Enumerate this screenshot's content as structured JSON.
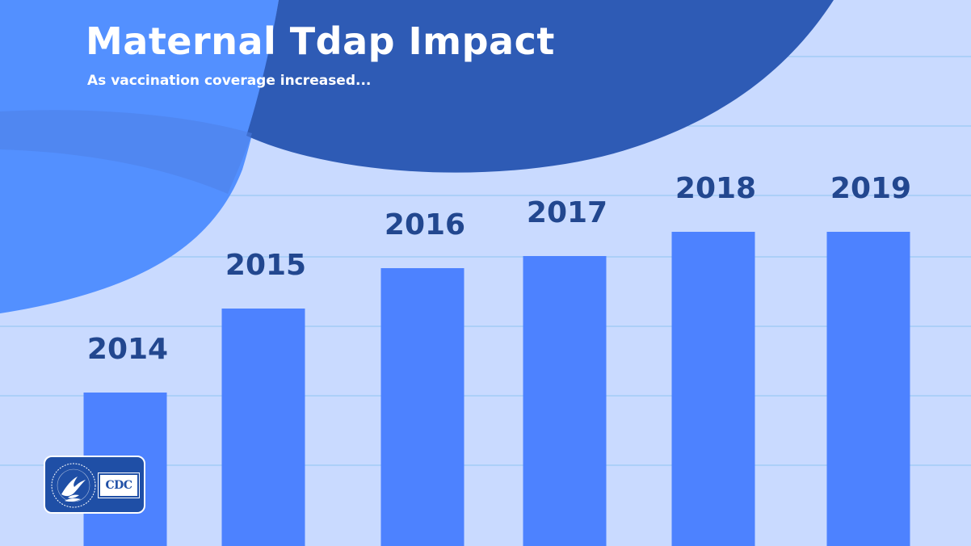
{
  "header": {
    "title": "Maternal Tdap Impact",
    "subtitle": "As vaccination coverage increased..."
  },
  "logo": {
    "agency_text": "CDC",
    "seal_icon": "hhs-eagle-seal-icon"
  },
  "colors": {
    "background": "#c9daff",
    "bar": "#4d82ff",
    "label": "#22478f",
    "dark_blob": "#2e5bb5",
    "light_blob": "#5390ff",
    "gridline": "#8fc4f0"
  },
  "chart_data": {
    "type": "bar",
    "title": "Maternal Tdap Impact",
    "subtitle": "As vaccination coverage increased...",
    "categories": [
      "2014",
      "2015",
      "2016",
      "2017",
      "2018",
      "2019"
    ],
    "values": [
      190,
      294,
      344,
      359,
      389,
      389
    ],
    "data_labels": [
      "2014",
      "2015",
      "2016",
      "2017",
      "2018",
      "2019"
    ],
    "xlabel": "",
    "ylabel": "",
    "ylim": [
      0,
      676
    ],
    "grid": true,
    "legend": "none"
  }
}
